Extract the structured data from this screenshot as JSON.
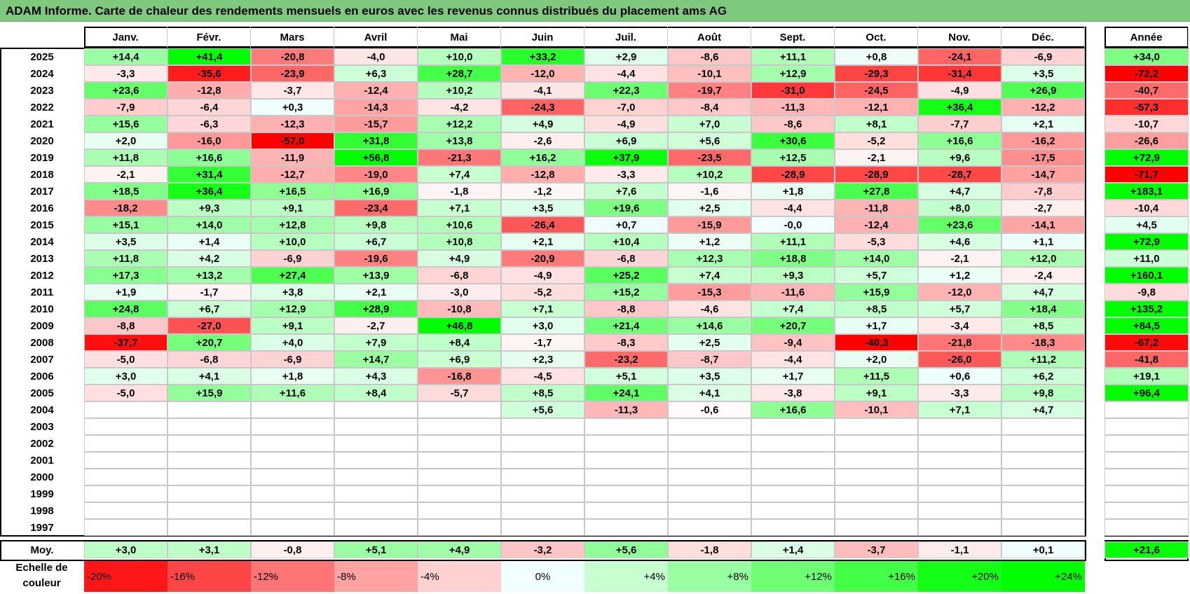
{
  "title": "ADAM Informe. Carte de chaleur des rendements mensuels en euros avec les revenus connus distribués du placement ams AG",
  "chart_data": {
    "type": "heatmap",
    "title": "ADAM Informe. Carte de chaleur des rendements mensuels en euros avec les revenus connus distribués du placement ams AG",
    "columns": [
      "Janv.",
      "Févr.",
      "Mars",
      "Avril",
      "Mai",
      "Juin",
      "Juil.",
      "Août",
      "Sept.",
      "Oct.",
      "Nov.",
      "Déc."
    ],
    "annual_header": "Année",
    "rows": [
      {
        "year": "2025",
        "values": [
          "+14,4",
          "+41,4",
          "-20,8",
          "-4,0",
          "+10,0",
          "+33,2",
          "+2,9",
          "-8,6",
          "+11,1",
          "+0,8",
          "-24,1",
          "-6,9"
        ],
        "annual": "+34,0"
      },
      {
        "year": "2024",
        "values": [
          "-3,3",
          "-35,6",
          "-23,9",
          "+6,3",
          "+28,7",
          "-12,0",
          "-4,4",
          "-10,1",
          "+12,9",
          "-29,3",
          "-31,4",
          "+3,5"
        ],
        "annual": "-72,2"
      },
      {
        "year": "2023",
        "values": [
          "+23,6",
          "-12,8",
          "-3,7",
          "-12,4",
          "+10,2",
          "-4,1",
          "+22,3",
          "-19,7",
          "-31,0",
          "-24,5",
          "-4,9",
          "+26,9"
        ],
        "annual": "-40,7"
      },
      {
        "year": "2022",
        "values": [
          "-7,9",
          "-6,4",
          "+0,3",
          "-14,3",
          "-4,2",
          "-24,3",
          "-7,0",
          "-8,4",
          "-11,3",
          "-12,1",
          "+36,4",
          "-12,2"
        ],
        "annual": "-57,3"
      },
      {
        "year": "2021",
        "values": [
          "+15,6",
          "-6,3",
          "-12,3",
          "-15,7",
          "+12,2",
          "+4,9",
          "-4,9",
          "+7,0",
          "-8,6",
          "+8,1",
          "-7,7",
          "+2,1"
        ],
        "annual": "-10,7"
      },
      {
        "year": "2020",
        "values": [
          "+2,0",
          "-16,0",
          "-57,0",
          "+31,8",
          "+13,8",
          "-2,6",
          "+6,9",
          "+5,6",
          "+30,6",
          "-5,2",
          "+16,6",
          "-16,2"
        ],
        "annual": "-26,6"
      },
      {
        "year": "2019",
        "values": [
          "+11,8",
          "+16,6",
          "-11,9",
          "+56,8",
          "-21,3",
          "+16,2",
          "+37,9",
          "-23,5",
          "+12,5",
          "-2,1",
          "+9,6",
          "-17,5"
        ],
        "annual": "+72,9"
      },
      {
        "year": "2018",
        "values": [
          "-2,1",
          "+31,4",
          "-12,7",
          "-19,0",
          "+7,4",
          "-12,8",
          "-3,3",
          "+10,2",
          "-28,9",
          "-28,9",
          "-28,7",
          "-14,7"
        ],
        "annual": "-71,7"
      },
      {
        "year": "2017",
        "values": [
          "+18,5",
          "+36,4",
          "+16,5",
          "+16,9",
          "-1,8",
          "-1,2",
          "+7,6",
          "-1,6",
          "+1,8",
          "+27,8",
          "+4,7",
          "-7,8"
        ],
        "annual": "+183,1"
      },
      {
        "year": "2016",
        "values": [
          "-18,2",
          "+9,3",
          "+9,1",
          "-23,4",
          "+7,1",
          "+3,5",
          "+19,6",
          "+2,5",
          "-4,4",
          "-11,8",
          "+8,0",
          "-2,7"
        ],
        "annual": "-10,4"
      },
      {
        "year": "2015",
        "values": [
          "+15,1",
          "+14,0",
          "+12,8",
          "+9,8",
          "+10,6",
          "-26,4",
          "+0,7",
          "-15,9",
          "-0,0",
          "-12,4",
          "+23,6",
          "-14,1"
        ],
        "annual": "+4,5"
      },
      {
        "year": "2014",
        "values": [
          "+3,5",
          "+1,4",
          "+10,0",
          "+6,7",
          "+10,8",
          "+2,1",
          "+10,4",
          "+1,2",
          "+11,1",
          "-5,3",
          "+4,6",
          "+1,1"
        ],
        "annual": "+72,9"
      },
      {
        "year": "2013",
        "values": [
          "+11,8",
          "+4,2",
          "-6,9",
          "-19,6",
          "+4,9",
          "-20,9",
          "-6,8",
          "+12,3",
          "+18,8",
          "+14,0",
          "-2,1",
          "+12,0"
        ],
        "annual": "+11,0"
      },
      {
        "year": "2012",
        "values": [
          "+17,3",
          "+13,2",
          "+27,4",
          "+13,9",
          "-6,8",
          "-4,9",
          "+25,2",
          "+7,4",
          "+9,3",
          "+5,7",
          "+1,2",
          "-2,4"
        ],
        "annual": "+160,1"
      },
      {
        "year": "2011",
        "values": [
          "+1,9",
          "-1,7",
          "+3,8",
          "+2,1",
          "-3,0",
          "-5,2",
          "+15,2",
          "-15,3",
          "-11,6",
          "+15,9",
          "-12,0",
          "+4,7"
        ],
        "annual": "-9,8"
      },
      {
        "year": "2010",
        "values": [
          "+24,8",
          "+6,7",
          "+12,9",
          "+28,9",
          "-10,8",
          "+7,1",
          "-8,8",
          "-4,6",
          "+7,4",
          "+8,5",
          "+5,7",
          "+18,4"
        ],
        "annual": "+135,2"
      },
      {
        "year": "2009",
        "values": [
          "-8,8",
          "-27,0",
          "+9,1",
          "-2,7",
          "+46,8",
          "+3,0",
          "+21,4",
          "+14,6",
          "+20,7",
          "+1,7",
          "-3,4",
          "+8,5"
        ],
        "annual": "+84,5"
      },
      {
        "year": "2008",
        "values": [
          "-37,7",
          "+20,7",
          "+4,0",
          "+7,9",
          "+8,4",
          "-1,7",
          "-8,3",
          "+2,5",
          "-9,4",
          "-40,3",
          "-21,8",
          "-18,3"
        ],
        "annual": "-67,2"
      },
      {
        "year": "2007",
        "values": [
          "-5,0",
          "-6,8",
          "-6,9",
          "+14,7",
          "+6,9",
          "+2,3",
          "-23,2",
          "-8,7",
          "-4,4",
          "+2,0",
          "-26,0",
          "+11,2"
        ],
        "annual": "-41,8"
      },
      {
        "year": "2006",
        "values": [
          "+3,0",
          "+4,1",
          "+1,8",
          "+4,3",
          "-16,8",
          "-4,5",
          "+5,1",
          "+3,5",
          "+1,7",
          "+11,5",
          "+0,6",
          "+6,2"
        ],
        "annual": "+19,1"
      },
      {
        "year": "2005",
        "values": [
          "-5,0",
          "+15,9",
          "+11,6",
          "+8,4",
          "-5,7",
          "+8,5",
          "+24,1",
          "+4,1",
          "-3,8",
          "+9,1",
          "-3,3",
          "+9,8"
        ],
        "annual": "+96,4"
      },
      {
        "year": "2004",
        "values": [
          "",
          "",
          "",
          "",
          "",
          "+5,6",
          "-11,3",
          "-0,6",
          "+16,6",
          "-10,1",
          "+7,1",
          "+4,7"
        ],
        "annual": ""
      },
      {
        "year": "2003",
        "values": [
          "",
          "",
          "",
          "",
          "",
          "",
          "",
          "",
          "",
          "",
          "",
          ""
        ],
        "annual": ""
      },
      {
        "year": "2002",
        "values": [
          "",
          "",
          "",
          "",
          "",
          "",
          "",
          "",
          "",
          "",
          "",
          ""
        ],
        "annual": ""
      },
      {
        "year": "2001",
        "values": [
          "",
          "",
          "",
          "",
          "",
          "",
          "",
          "",
          "",
          "",
          "",
          ""
        ],
        "annual": ""
      },
      {
        "year": "2000",
        "values": [
          "",
          "",
          "",
          "",
          "",
          "",
          "",
          "",
          "",
          "",
          "",
          ""
        ],
        "annual": ""
      },
      {
        "year": "1999",
        "values": [
          "",
          "",
          "",
          "",
          "",
          "",
          "",
          "",
          "",
          "",
          "",
          ""
        ],
        "annual": ""
      },
      {
        "year": "1998",
        "values": [
          "",
          "",
          "",
          "",
          "",
          "",
          "",
          "",
          "",
          "",
          "",
          ""
        ],
        "annual": ""
      },
      {
        "year": "1997",
        "values": [
          "",
          "",
          "",
          "",
          "",
          "",
          "",
          "",
          "",
          "",
          "",
          ""
        ],
        "annual": ""
      }
    ],
    "average": {
      "label": "Moy.",
      "values": [
        "+3,0",
        "+3,1",
        "-0,8",
        "+5,1",
        "+4,9",
        "-3,2",
        "+5,6",
        "-1,8",
        "+1,4",
        "-3,7",
        "-1,1",
        "+0,1"
      ],
      "annual": "+21,6"
    },
    "color_scale": {
      "label": "Echelle de couleur",
      "steps": [
        "-20%",
        "-16%",
        "-12%",
        "-8%",
        "-4%",
        "0%",
        "+4%",
        "+8%",
        "+12%",
        "+16%",
        "+20%",
        "+24%"
      ],
      "values": [
        -20,
        -16,
        -12,
        -8,
        -4,
        0,
        4,
        8,
        12,
        16,
        20,
        24
      ]
    },
    "colors": {
      "negative_max": "#ff0000",
      "neutral": "#ffffff",
      "positive_max": "#00ff00",
      "title_bg": "#7fc97f"
    }
  }
}
